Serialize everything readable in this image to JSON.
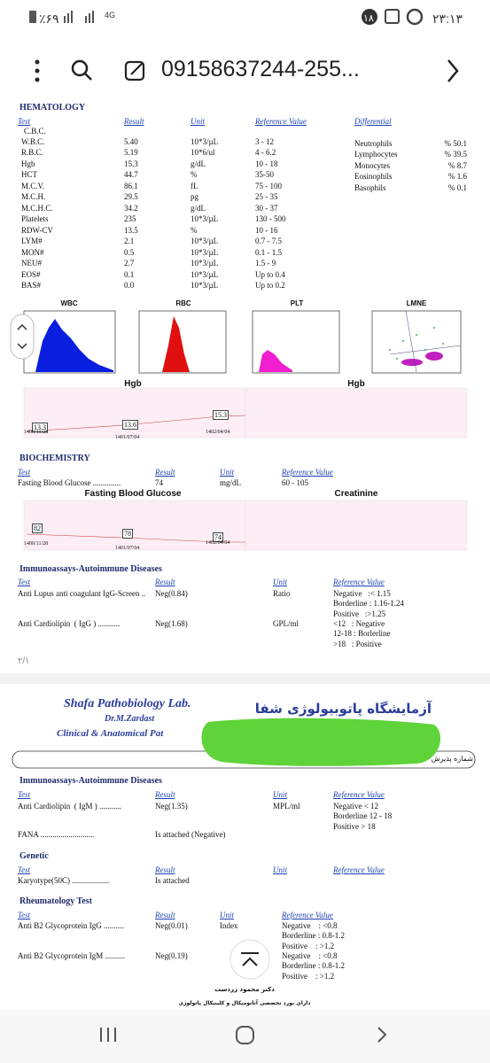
{
  "status_bar": {
    "time": "۲۳:۱۳",
    "notifications": "۱۸",
    "battery": "٪۶۹",
    "network": "4G"
  },
  "toolbar": {
    "title": "09158637244-255..."
  },
  "page1": {
    "hematology": {
      "title": "HEMATOLOGY",
      "headers": [
        "Test",
        "Result",
        "Unit",
        "Reference Value",
        "Differential"
      ],
      "group": "C.B.C.",
      "rows": [
        [
          "W.B.C.",
          "5.40",
          "10*3/µL",
          "3 - 12"
        ],
        [
          "R.B.C.",
          "5.19",
          "10*6/ul",
          "4 - 6.2"
        ],
        [
          "Hgb",
          "15.3",
          "g/dL",
          "10 - 18"
        ],
        [
          "HCT",
          "44.7",
          "%",
          "35-50"
        ],
        [
          "M.C.V.",
          "86.1",
          "fL",
          "75 - 100"
        ],
        [
          "M.C.H.",
          "29.5",
          "pg",
          "25 - 35"
        ],
        [
          "M.C.H.C.",
          "34.2",
          "g/dL",
          "30 - 37"
        ],
        [
          "Platelets",
          "235",
          "10*3/µL",
          "130 - 500"
        ],
        [
          "RDW-CV",
          "13.5",
          "%",
          "10 - 16"
        ],
        [
          "LYM#",
          "2.1",
          "10*3/µL",
          "0.7 - 7.5"
        ],
        [
          "MON#",
          "0.5",
          "10*3/µL",
          "0.1 - 1.5"
        ],
        [
          "NEU#",
          "2.7",
          "10*3/µL",
          "1.5 - 9"
        ],
        [
          "EOS#",
          "0.1",
          "10*3/µL",
          "Up to 0.4"
        ],
        [
          "BAS#",
          "0.0",
          "10*3/µL",
          "Up to 0.2"
        ]
      ],
      "differential": [
        [
          "Neutrophils",
          "50.1 %"
        ],
        [
          "Lymphocytes",
          "39.5 %"
        ],
        [
          "Monocytes",
          "8.7 %"
        ],
        [
          "Eosinophils",
          "1.6 %"
        ],
        [
          "Basophils",
          "0.1 %"
        ]
      ]
    },
    "histograms": [
      "WBC",
      "RBC",
      "PLT",
      "LMNE"
    ],
    "trend_charts": [
      {
        "title": "Hgb",
        "points": [
          "13.3",
          "13.6",
          "15.3"
        ],
        "dates": [
          "1400/11/28",
          "1401/07/04",
          "1402/04/04"
        ]
      },
      {
        "title": "Hgb"
      }
    ],
    "biochemistry": {
      "title": "BIOCHEMISTRY",
      "headers": [
        "Test",
        "Result",
        "Unit",
        "Reference Value"
      ],
      "rows": [
        {
          "test": "Fasting Blood Glucose ..............",
          "result": "74",
          "unit": "mg/dL",
          "reference": [
            "60 - 105"
          ]
        }
      ],
      "trend_charts": [
        {
          "title": "Fasting Blood Glucose",
          "points": [
            "82",
            "78",
            "74"
          ],
          "dates": [
            "1400/11/28",
            "1401/07/04",
            "1402/04/04"
          ]
        },
        {
          "title": "Creatinine"
        }
      ]
    },
    "immunoassays": {
      "title": "Immunoassays-Autoimmune Diseases",
      "headers": [
        "Test",
        "Result",
        "Unit",
        "Reference Value"
      ],
      "rows": [
        {
          "test": "Anti Lupus anti coagulant IgG-Screen ..",
          "result": "Neg(0.84)",
          "unit": "Ratio",
          "reference": [
            "Negative   :< 1.15",
            "Borderline : 1.16-1.24",
            "Positive   :>1.25"
          ]
        },
        {
          "test": "Anti Cardiolipin  ( IgG ) ...........",
          "result": "Neg(1.68)",
          "unit": "GPL/ml",
          "reference": [
            "<12   : Negative",
            "12-18 : Borlerline",
            ">18   : Positive"
          ]
        }
      ]
    },
    "page_number": "۲/۱"
  },
  "page2": {
    "header": {
      "lab_name": "Shafa Pathobiology Lab.",
      "doctor": "Dr.M.Zardast",
      "subtitle": "Clinical & Anatomical Pat",
      "lab_name_fa": "آزمایشگاه پاتوبیولوژی شفا",
      "admission_label": "شماره پذیرش"
    },
    "immunoassays": {
      "title": "Immunoassays-Autoimmune Diseases",
      "headers": [
        "Test",
        "Result",
        "Unit",
        "Reference Value"
      ],
      "rows": [
        {
          "test": "Anti Cardiolipin  ( IgM ) ...........",
          "result": "Neg(1.35)",
          "unit": "MPL/ml",
          "reference": [
            "Negative < 12",
            "Borderline 12 - 18",
            "Positive > 18"
          ]
        },
        {
          "test": "FANA ...........................",
          "result": "Is attached (Negative)"
        }
      ]
    },
    "genetic": {
      "title": "Genetic",
      "headers": [
        "Test",
        "Result",
        "Unit",
        "Reference Value"
      ],
      "rows": [
        {
          "test": "Karyotype(50C) ...................",
          "result": "Is attached"
        }
      ]
    },
    "rheumatology": {
      "title": "Rheumatology Test",
      "headers": [
        "Test",
        "Result",
        "Unit",
        "Reference Value"
      ],
      "rows": [
        {
          "test": "Anti B2 Glycoprotein IgG ..........",
          "result": "Neg(0.01)",
          "unit": "Index",
          "reference": [
            "Negative    : <0.8",
            "Borderline : 0.8-1.2",
            "Positive    : >1.2"
          ]
        },
        {
          "test": "Anti B2 Glycoprotein IgM ..........",
          "result": "Neg(0.19)",
          "reference": [
            "Negative    : <0.8",
            "Borderline : 0.8-1.2",
            "Positive    : >1.2"
          ]
        }
      ]
    },
    "signature": [
      "دکتر محمود زردست",
      "دارای بورد تخصصی آناتومیکال و کلینیکال پاتولوژی"
    ]
  }
}
